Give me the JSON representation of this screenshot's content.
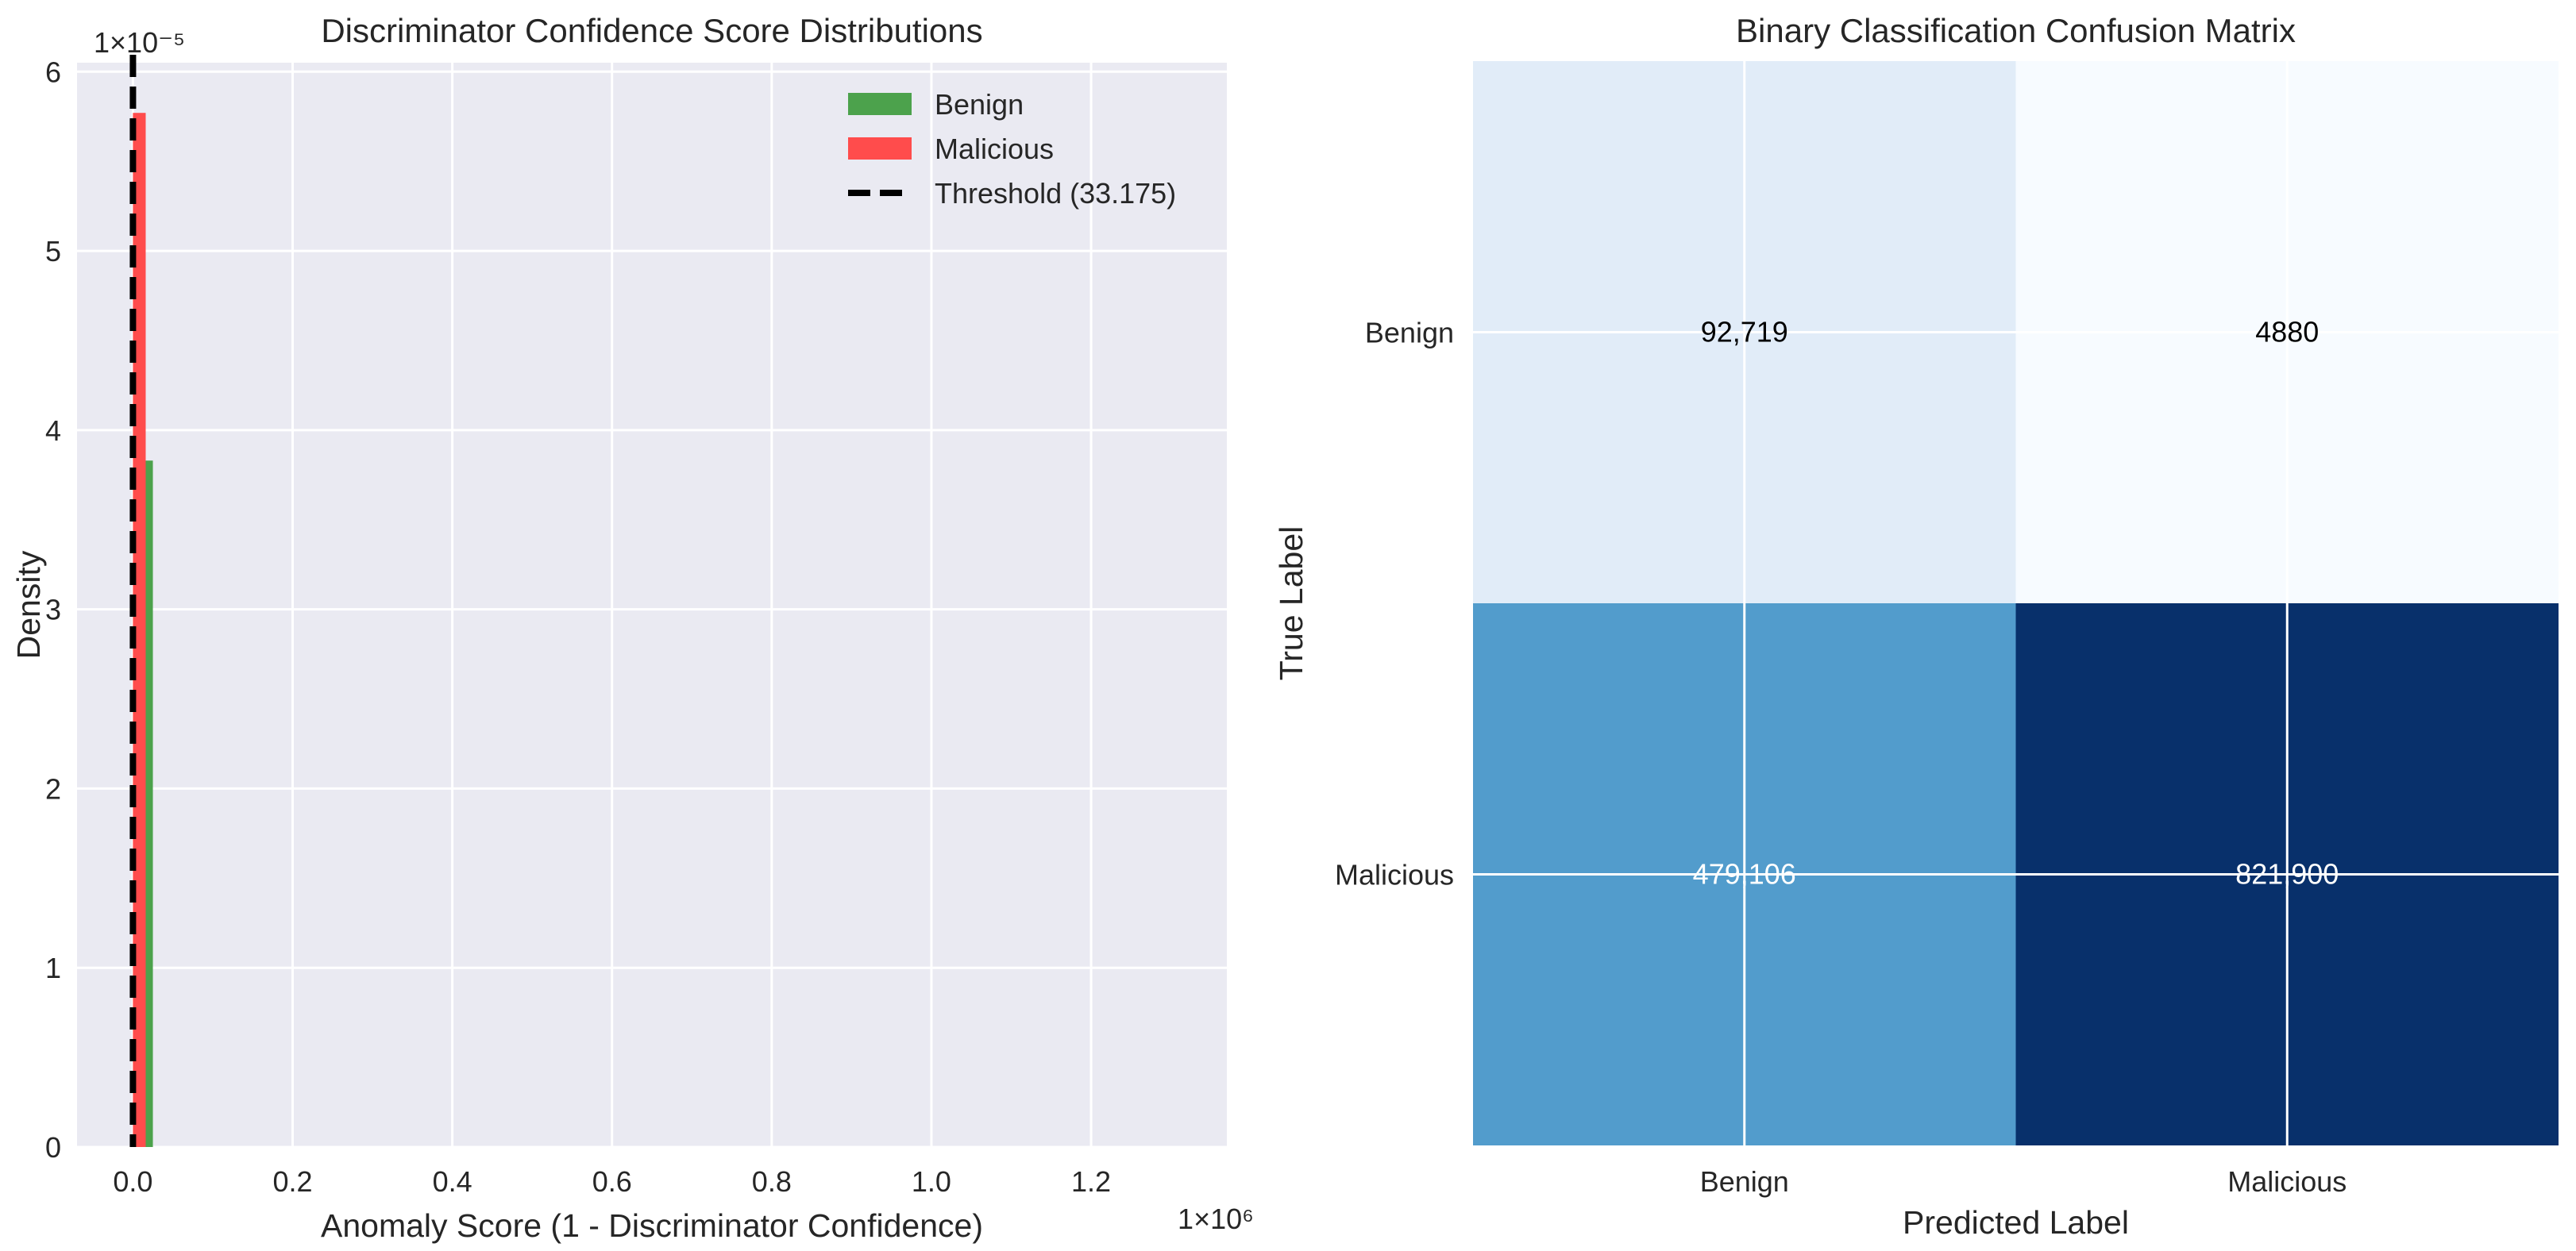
{
  "chart_data": [
    {
      "type": "bar",
      "title": "Discriminator Confidence Score Distributions",
      "xlabel": "Anomaly Score (1 - Discriminator Confidence)",
      "ylabel": "Density",
      "x_offset_text": "1×10⁶",
      "y_offset_text": "1×10⁻⁵",
      "xlim": [
        -0.07,
        1.37
      ],
      "ylim": [
        0,
        6.05
      ],
      "x_scale_factor": 1000000,
      "y_scale_factor": 1e-05,
      "xticks": [
        0.0,
        0.2,
        0.4,
        0.6,
        0.8,
        1.0,
        1.2
      ],
      "yticks": [
        0,
        1,
        2,
        3,
        4,
        5,
        6
      ],
      "xtick_labels": [
        "0.0",
        "0.2",
        "0.4",
        "0.6",
        "0.8",
        "1.0",
        "1.2"
      ],
      "ytick_labels": [
        "0",
        "1",
        "2",
        "3",
        "4",
        "5",
        "6"
      ],
      "grid": true,
      "legend_position": "top-right",
      "series": [
        {
          "name": "Benign",
          "color": "#4ca24c",
          "bins": [
            {
              "x0": 0.005,
              "x1": 0.025,
              "density": 3.83
            }
          ]
        },
        {
          "name": "Malicious",
          "color": "#ff4c4c",
          "bins": [
            {
              "x0": 0.0,
              "x1": 0.016,
              "density": 5.77
            }
          ]
        }
      ],
      "threshold": {
        "name": "Threshold (33.175)",
        "value": 33.175,
        "color": "#000000"
      }
    },
    {
      "type": "heatmap",
      "title": "Binary Classification Confusion Matrix",
      "xlabel": "Predicted Label",
      "ylabel": "True Label",
      "x_categories": [
        "Benign",
        "Malicious"
      ],
      "y_categories": [
        "Benign",
        "Malicious"
      ],
      "values": [
        [
          92719,
          4880
        ],
        [
          479106,
          821900
        ]
      ],
      "cell_labels": [
        [
          "92,719",
          "4880"
        ],
        [
          "479,106",
          "821,900"
        ]
      ],
      "colormap": "Blues",
      "cell_colors": [
        [
          "#e1ecf8",
          "#f7fbff"
        ],
        [
          "#529ccc",
          "#08306b"
        ]
      ],
      "text_colors": [
        [
          "#000000",
          "#000000"
        ],
        [
          "#ffffff",
          "#ffffff"
        ]
      ],
      "grid": true
    }
  ]
}
